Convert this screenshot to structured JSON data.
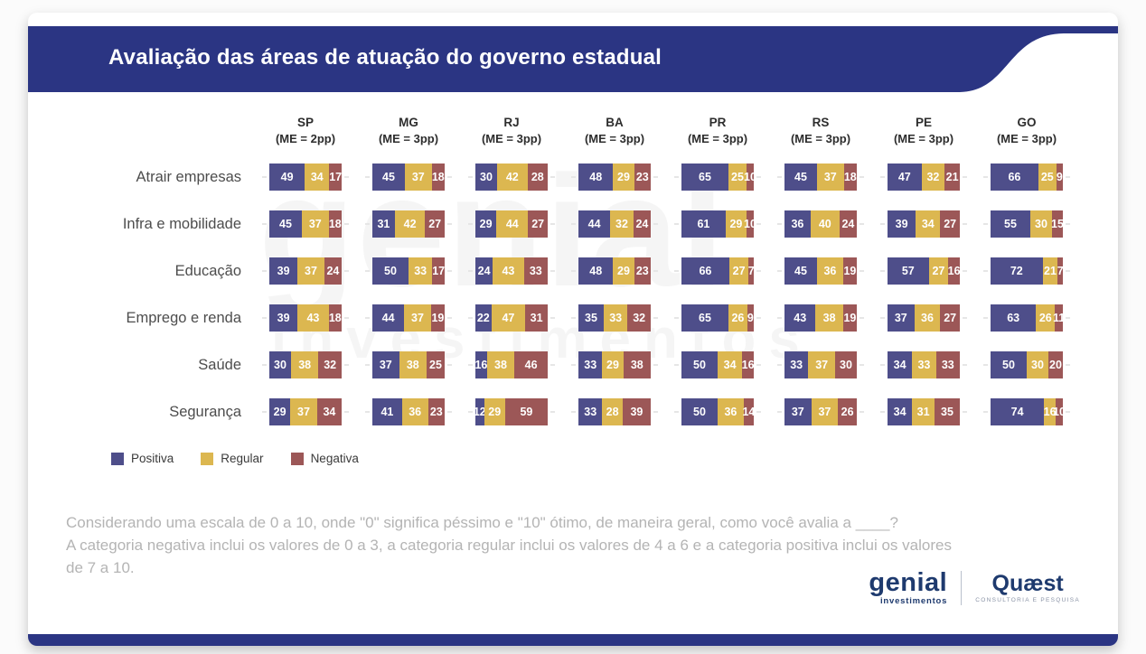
{
  "header": {
    "title": "Avaliação das áreas de atuação do governo estadual"
  },
  "watermark": {
    "line1": "genial",
    "line2": "investimentos"
  },
  "chart_data": {
    "type": "bar",
    "stacked": true,
    "orientation": "horizontal",
    "value_unit": "percent",
    "series_names": [
      "Positiva",
      "Regular",
      "Negativa"
    ],
    "columns": [
      {
        "code": "SP",
        "me": "(ME = 2pp)"
      },
      {
        "code": "MG",
        "me": "(ME = 3pp)"
      },
      {
        "code": "RJ",
        "me": "(ME = 3pp)"
      },
      {
        "code": "BA",
        "me": "(ME = 3pp)"
      },
      {
        "code": "PR",
        "me": "(ME = 3pp)"
      },
      {
        "code": "RS",
        "me": "(ME = 3pp)"
      },
      {
        "code": "PE",
        "me": "(ME = 3pp)"
      },
      {
        "code": "GO",
        "me": "(ME = 3pp)"
      }
    ],
    "rows": [
      {
        "label": "Atrair empresas",
        "values": [
          [
            49,
            34,
            17
          ],
          [
            45,
            37,
            18
          ],
          [
            30,
            42,
            28
          ],
          [
            48,
            29,
            23
          ],
          [
            65,
            25,
            10
          ],
          [
            45,
            37,
            18
          ],
          [
            47,
            32,
            21
          ],
          [
            66,
            25,
            9
          ]
        ]
      },
      {
        "label": "Infra e mobilidade",
        "values": [
          [
            45,
            37,
            18
          ],
          [
            31,
            42,
            27
          ],
          [
            29,
            44,
            27
          ],
          [
            44,
            32,
            24
          ],
          [
            61,
            29,
            10
          ],
          [
            36,
            40,
            24
          ],
          [
            39,
            34,
            27
          ],
          [
            55,
            30,
            15
          ]
        ]
      },
      {
        "label": "Educação",
        "values": [
          [
            39,
            37,
            24
          ],
          [
            50,
            33,
            17
          ],
          [
            24,
            43,
            33
          ],
          [
            48,
            29,
            23
          ],
          [
            66,
            27,
            7
          ],
          [
            45,
            36,
            19
          ],
          [
            57,
            27,
            16
          ],
          [
            72,
            21,
            7
          ]
        ]
      },
      {
        "label": "Emprego e renda",
        "values": [
          [
            39,
            43,
            18
          ],
          [
            44,
            37,
            19
          ],
          [
            22,
            47,
            31
          ],
          [
            35,
            33,
            32
          ],
          [
            65,
            26,
            9
          ],
          [
            43,
            38,
            19
          ],
          [
            37,
            36,
            27
          ],
          [
            63,
            26,
            11
          ]
        ]
      },
      {
        "label": "Saúde",
        "values": [
          [
            30,
            38,
            32
          ],
          [
            37,
            38,
            25
          ],
          [
            16,
            38,
            46
          ],
          [
            33,
            29,
            38
          ],
          [
            50,
            34,
            16
          ],
          [
            33,
            37,
            30
          ],
          [
            34,
            33,
            33
          ],
          [
            50,
            30,
            20
          ]
        ]
      },
      {
        "label": "Segurança",
        "values": [
          [
            29,
            37,
            34
          ],
          [
            41,
            36,
            23
          ],
          [
            12,
            29,
            59
          ],
          [
            33,
            28,
            39
          ],
          [
            50,
            36,
            14
          ],
          [
            37,
            37,
            26
          ],
          [
            34,
            31,
            35
          ],
          [
            74,
            16,
            10
          ]
        ]
      }
    ]
  },
  "legend": {
    "items": [
      {
        "label": "Positiva",
        "color": "#4e4e8a"
      },
      {
        "label": "Regular",
        "color": "#dcb750"
      },
      {
        "label": "Negativa",
        "color": "#9c5757"
      }
    ]
  },
  "footnote": {
    "line1": "Considerando uma escala de 0 a 10, onde \"0\" significa péssimo e \"10\" ótimo, de maneira geral, como você avalia a ____?",
    "line2": "A categoria negativa inclui os valores de 0 a 3, a categoria regular inclui os valores de 4 a 6 e a categoria positiva inclui os valores de 7 a 10."
  },
  "footer": {
    "genial_word": "genial",
    "genial_sub": "investimentos",
    "quaest_word": "Quæst",
    "quaest_sub": "CONSULTORIA E PESQUISA"
  },
  "colors": {
    "header_band": "#2b3583",
    "positiva": "#4e4e8a",
    "regular": "#dcb750",
    "negativa": "#9c5757",
    "logo_navy": "#1e3a6e",
    "footnote_gray": "#b4b4b4"
  }
}
